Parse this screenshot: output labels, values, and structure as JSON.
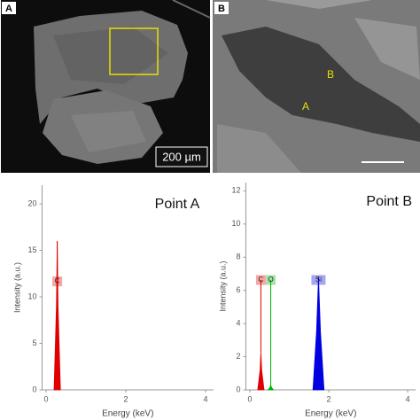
{
  "images": {
    "A": {
      "panel_label": "A",
      "scale_bar": "200 µm"
    },
    "B": {
      "panel_label": "B",
      "points": [
        "A",
        "B"
      ]
    }
  },
  "chart_data": [
    {
      "type": "area",
      "title": "Point A",
      "x_label": "Energy (keV)",
      "y_label": "Intensity (a.u.)",
      "xlim": [
        -0.1,
        4.2
      ],
      "ylim": [
        0,
        22
      ],
      "xticks": [
        0,
        2,
        4
      ],
      "yticks": [
        0,
        5,
        10,
        15,
        20
      ],
      "series": [
        {
          "name": "C",
          "color": "#e00000",
          "x": [
            0.2,
            0.26,
            0.28,
            0.3,
            0.36
          ],
          "values": [
            0,
            9,
            16,
            9,
            0
          ]
        }
      ]
    },
    {
      "type": "area",
      "title": "Point B",
      "x_label": "Energy (keV)",
      "y_label": "Intensity (a.u.)",
      "xlim": [
        -0.1,
        4.2
      ],
      "ylim": [
        0,
        12.5
      ],
      "xticks": [
        0,
        2,
        4
      ],
      "yticks": [
        0,
        2,
        4,
        6,
        8,
        10,
        12
      ],
      "series": [
        {
          "name": "C",
          "color": "#e00000",
          "x": [
            0.2,
            0.26,
            0.28,
            0.3,
            0.36
          ],
          "values": [
            0,
            1.2,
            2.3,
            1.2,
            0
          ]
        },
        {
          "name": "O",
          "color": "#00b000",
          "x": [
            0.46,
            0.51,
            0.53,
            0.55,
            0.6
          ],
          "values": [
            0,
            0.15,
            0.3,
            0.15,
            0
          ]
        },
        {
          "name": "Si",
          "color": "#0000e0",
          "x": [
            1.6,
            1.69,
            1.74,
            1.79,
            1.88
          ],
          "values": [
            0,
            3.5,
            6.8,
            3.5,
            0
          ]
        }
      ]
    }
  ]
}
